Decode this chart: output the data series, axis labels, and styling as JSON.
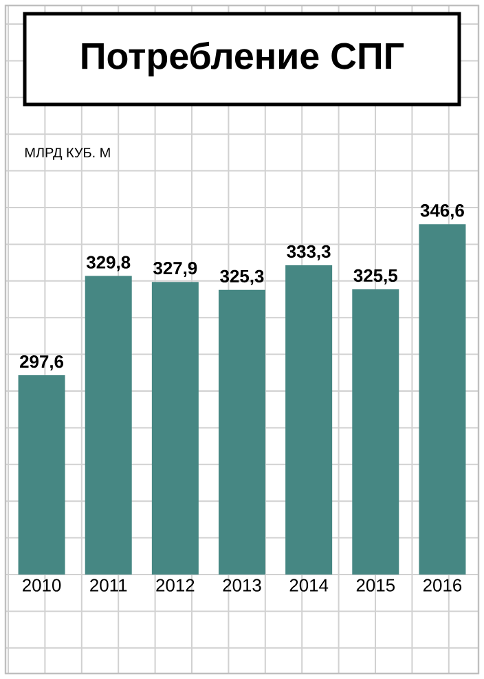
{
  "chart_data": {
    "type": "bar",
    "title": "Потребление СПГ",
    "ylabel": "МЛРД КУБ. М",
    "categories": [
      "2010",
      "2011",
      "2012",
      "2013",
      "2014",
      "2015",
      "2016"
    ],
    "values": [
      297.6,
      329.8,
      327.9,
      325.3,
      333.3,
      325.5,
      346.6
    ],
    "value_labels": [
      "297,6",
      "329,8",
      "327,9",
      "325,3",
      "333,3",
      "325,5",
      "346,6"
    ],
    "color": "#468783",
    "ylim": [
      233,
      352
    ],
    "tick_labels": "x"
  }
}
